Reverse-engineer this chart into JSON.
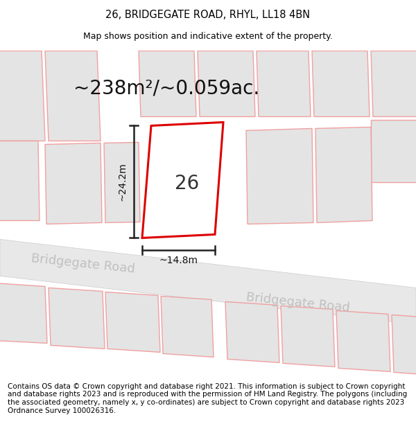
{
  "title": "26, BRIDGEGATE ROAD, RHYL, LL18 4BN",
  "subtitle": "Map shows position and indicative extent of the property.",
  "footer": "Contains OS data © Crown copyright and database right 2021. This information is subject to Crown copyright and database rights 2023 and is reproduced with the permission of HM Land Registry. The polygons (including the associated geometry, namely x, y co-ordinates) are subject to Crown copyright and database rights 2023 Ordnance Survey 100026316.",
  "area_label": "~238m²/~0.059ac.",
  "width_label": "~14.8m",
  "height_label": "~24.2m",
  "number_label": "26",
  "red_stroke": "#dd0000",
  "title_fontsize": 10.5,
  "subtitle_fontsize": 9,
  "footer_fontsize": 7.5,
  "area_fontsize": 20,
  "number_fontsize": 20,
  "dim_label_fontsize": 10,
  "road_label_fontsize": 13
}
